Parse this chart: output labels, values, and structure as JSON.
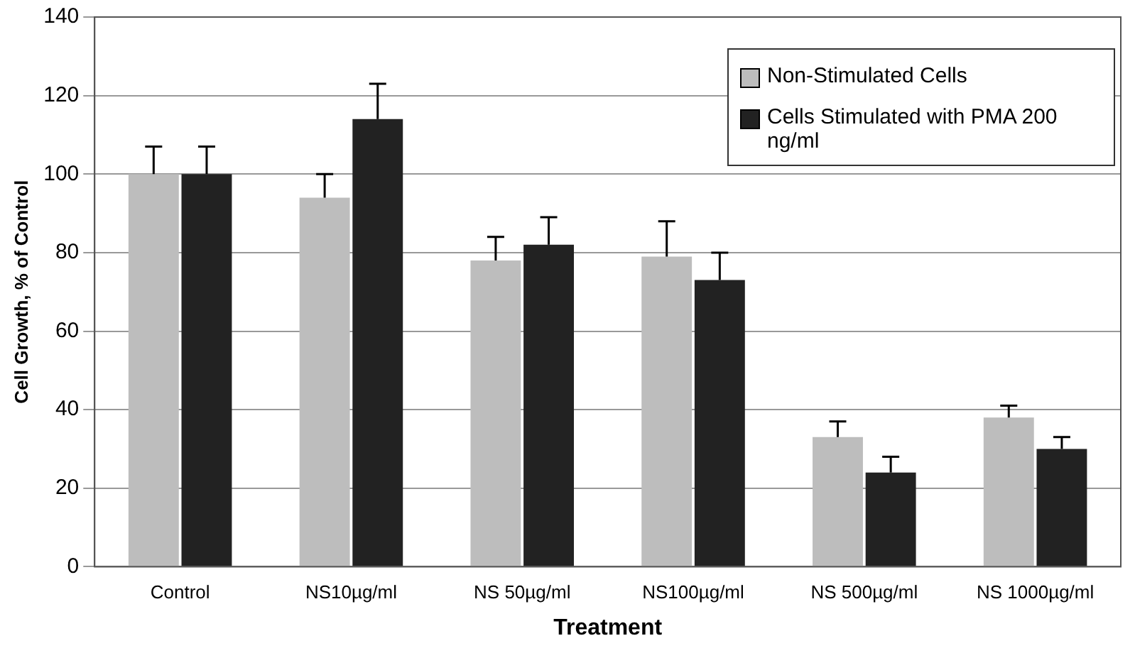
{
  "chart_data": {
    "type": "bar",
    "xlabel": "Treatment",
    "ylabel": "Cell Growth, % of Control",
    "categories": [
      "Control",
      "NS10µg/ml",
      "NS 50µg/ml",
      "NS100µg/ml",
      "NS 500µg/ml",
      "NS 1000µg/ml"
    ],
    "series": [
      {
        "name": "Non-Stimulated Cells",
        "color": "#bdbdbd",
        "values": [
          100,
          94,
          78,
          79,
          33,
          38
        ],
        "errors": [
          [
            100,
            107
          ],
          [
            94,
            100
          ],
          [
            78,
            84
          ],
          [
            79,
            88
          ],
          [
            33,
            37
          ],
          [
            38,
            41
          ]
        ]
      },
      {
        "name": "Cells Stimulated with PMA 200 ng/ml",
        "color": "#222222",
        "values": [
          100,
          114,
          82,
          73,
          24,
          30
        ],
        "errors": [
          [
            100,
            107
          ],
          [
            114,
            123
          ],
          [
            82,
            89
          ],
          [
            73,
            80
          ],
          [
            24,
            28
          ],
          [
            30,
            33
          ]
        ]
      }
    ],
    "ylim": [
      0,
      140
    ],
    "yticks": [
      0,
      20,
      40,
      60,
      80,
      100,
      120,
      140
    ],
    "grid": "y",
    "legend": "top right"
  }
}
